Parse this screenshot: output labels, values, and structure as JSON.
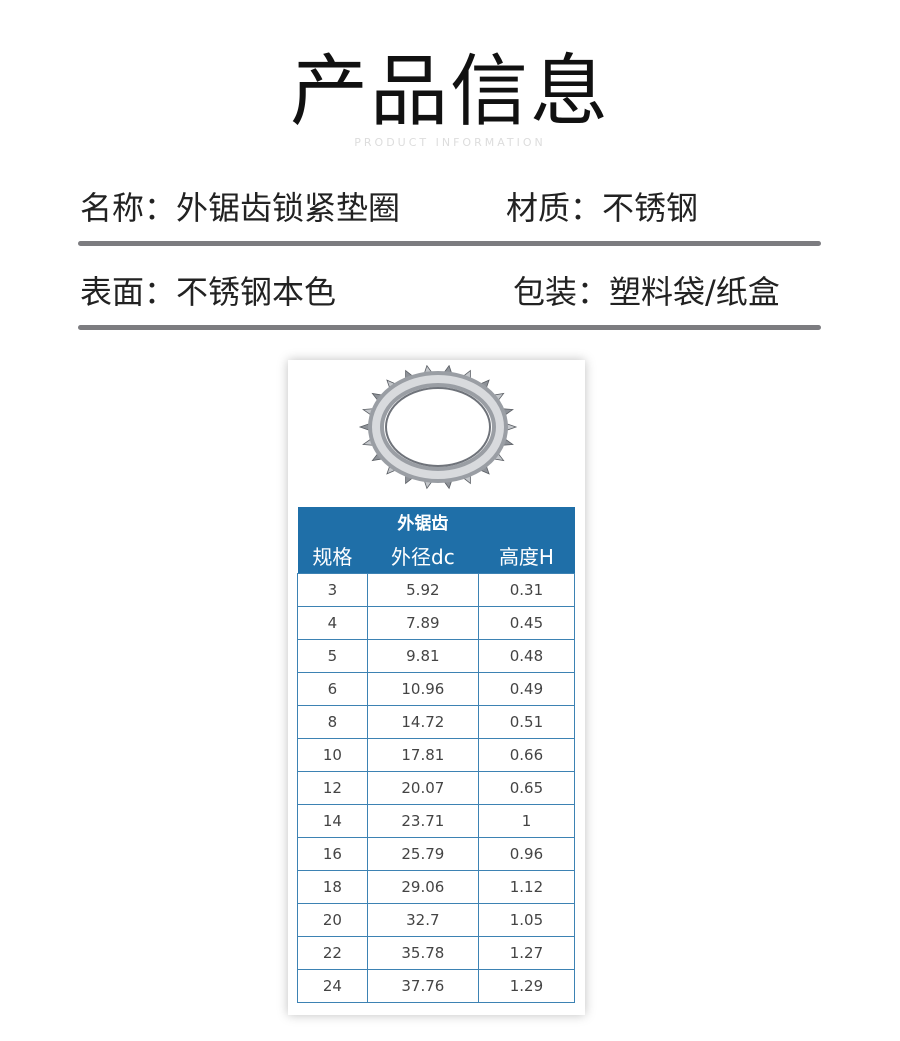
{
  "header": {
    "title": "产品信息",
    "subtitle": "PRODUCT INFORMATION"
  },
  "info": {
    "name": "名称：外锯齿锁紧垫圈",
    "material": "材质：不锈钢",
    "surface": "表面：不锈钢本色",
    "packaging": "包装：塑料袋/纸盒"
  },
  "table": {
    "group_header": "外锯齿",
    "columns": [
      "规格",
      "外径dc",
      "高度H"
    ],
    "rows": [
      [
        "3",
        "5.92",
        "0.31"
      ],
      [
        "4",
        "7.89",
        "0.45"
      ],
      [
        "5",
        "9.81",
        "0.48"
      ],
      [
        "6",
        "10.96",
        "0.49"
      ],
      [
        "8",
        "14.72",
        "0.51"
      ],
      [
        "10",
        "17.81",
        "0.66"
      ],
      [
        "12",
        "20.07",
        "0.65"
      ],
      [
        "14",
        "23.71",
        "1"
      ],
      [
        "16",
        "25.79",
        "0.96"
      ],
      [
        "18",
        "29.06",
        "1.12"
      ],
      [
        "20",
        "32.7",
        "1.05"
      ],
      [
        "22",
        "35.78",
        "1.27"
      ],
      [
        "24",
        "37.76",
        "1.29"
      ]
    ]
  },
  "colors": {
    "table_header": "#1f6fa8",
    "rule": "#7c7c80"
  }
}
